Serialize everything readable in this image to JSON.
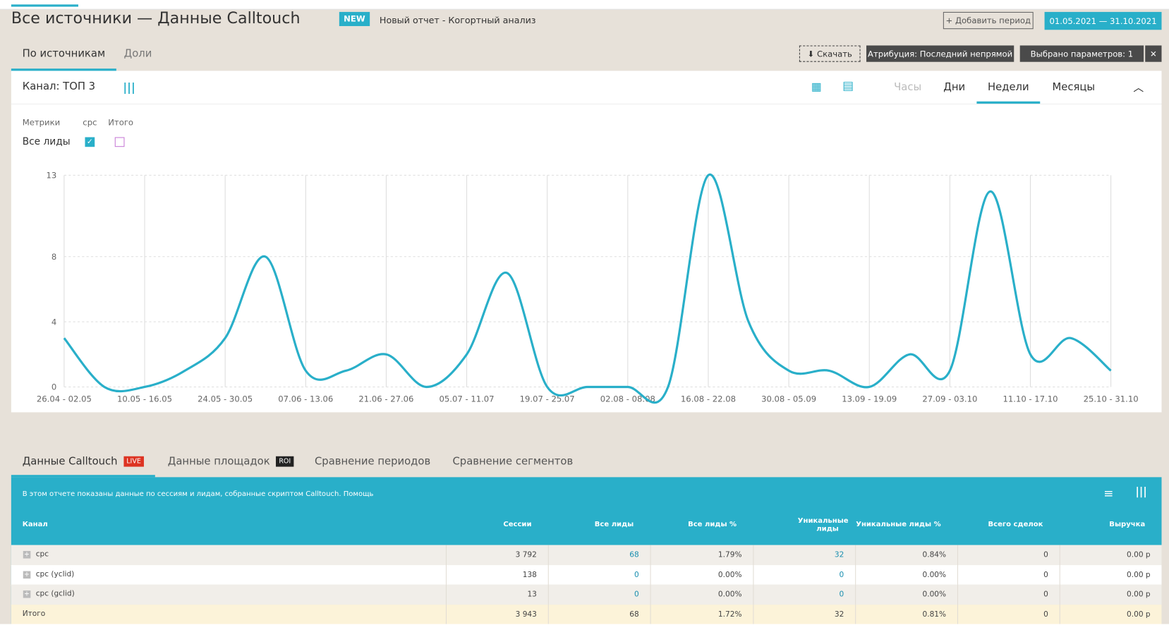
{
  "header": {
    "title": "Все источники — Данные Calltouch",
    "badge": "NEW",
    "subtitle": "Новый отчет - Когортный анализ",
    "add_period": "Добавить период",
    "date_range": "01.05.2021 — 31.10.2021"
  },
  "tabs": [
    "По источникам",
    "Доли"
  ],
  "toolbar": {
    "download": "Скачать",
    "attribution": "Атрибуция: Последний непрямой",
    "params": "Выбрано параметров: 1"
  },
  "panel": {
    "channel": "Канал: ТОП 3",
    "granularity": [
      "Часы",
      "Дни",
      "Недели",
      "Месяцы"
    ]
  },
  "metrics": {
    "label": "Метрики",
    "columns": [
      "cpc",
      "Итого"
    ],
    "row": "Все лиды"
  },
  "chart_data": {
    "type": "line",
    "categories": [
      "26.04 - 02.05",
      null,
      "10.05 - 16.05",
      null,
      "24.05 - 30.05",
      null,
      "07.06 - 13.06",
      null,
      "21.06 - 27.06",
      null,
      "05.07 - 11.07",
      null,
      "19.07 - 25.07",
      null,
      "02.08 - 08.08",
      null,
      "16.08 - 22.08",
      null,
      "30.08 - 05.09",
      null,
      "13.09 - 19.09",
      null,
      "27.09 - 03.10",
      null,
      "11.10 - 17.10",
      null,
      "25.10 - 31.10"
    ],
    "values": [
      3,
      0,
      0,
      1,
      3,
      8,
      1,
      1,
      2,
      0,
      2,
      7,
      0,
      0,
      0,
      0,
      13,
      4,
      1,
      1,
      0,
      2,
      1,
      12,
      2,
      3,
      1
    ],
    "color": "#29afc9",
    "ylim": [
      0,
      13
    ],
    "yticks": [
      0,
      4,
      8,
      13
    ],
    "grid": true
  },
  "bottom_tabs": [
    {
      "label": "Данные Calltouch",
      "badge": "LIVE"
    },
    {
      "label": "Данные площадок",
      "badge": "ROI"
    },
    {
      "label": "Сравнение периодов"
    },
    {
      "label": "Сравнение сегментов"
    }
  ],
  "table": {
    "info": "В этом отчете показаны данные по сессиям и лидам, собранные скриптом Calltouch. Помощь",
    "columns": [
      "Канал",
      "Сессии",
      "Все лиды",
      "Все лиды %",
      "Уникальные лиды",
      "Уникальные лиды %",
      "Всего сделок",
      "Выручка"
    ],
    "rows": [
      [
        "cpc",
        "3 792",
        "68",
        "1.79%",
        "32",
        "0.84%",
        "0",
        "0.00 р"
      ],
      [
        "cpc (yclid)",
        "138",
        "0",
        "0.00%",
        "0",
        "0.00%",
        "0",
        "0.00 р"
      ],
      [
        "cpc (gclid)",
        "13",
        "0",
        "0.00%",
        "0",
        "0.00%",
        "0",
        "0.00 р"
      ]
    ],
    "total": [
      "Итого",
      "3 943",
      "68",
      "1.72%",
      "32",
      "0.81%",
      "0",
      "0.00 р"
    ]
  }
}
